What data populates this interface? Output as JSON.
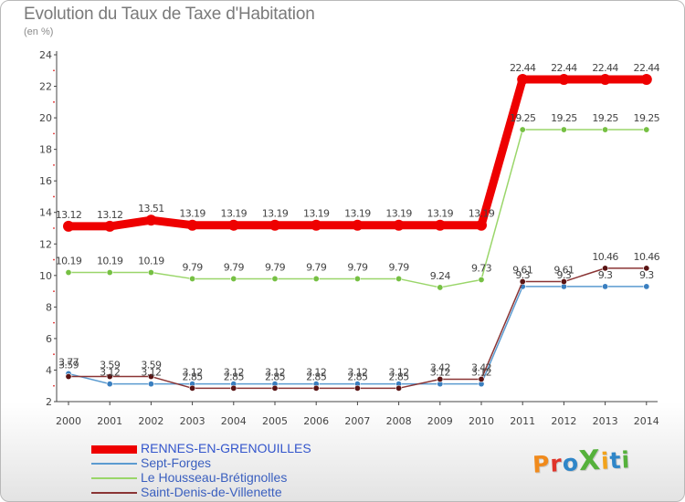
{
  "title": "Evolution du Taux de Taxe d'Habitation",
  "subtitle": "(en %)",
  "logo": "ProXiti",
  "colors": {
    "axis": "#444444",
    "grid_marks": "#dd2222",
    "label": "#444444"
  },
  "chart_data": {
    "type": "line",
    "title": "Evolution du Taux de Taxe d'Habitation",
    "ylabel": "(en %)",
    "xlabel": "",
    "ylim": [
      2,
      24
    ],
    "yticks": [
      2,
      4,
      6,
      8,
      10,
      12,
      14,
      16,
      18,
      20,
      22,
      24
    ],
    "grid": false,
    "legend_position": "bottom-left",
    "x": [
      "2000",
      "2001",
      "2002",
      "2003",
      "2004",
      "2005",
      "2006",
      "2007",
      "2008",
      "2009",
      "2010",
      "2011",
      "2012",
      "2013",
      "2014"
    ],
    "series": [
      {
        "name": "RENNES-EN-GRENOUILLES",
        "color": "#ee0000",
        "marker": "#ee0000",
        "labels": [
          "13.12",
          "13.12",
          "13.51",
          "13.19",
          "13.19",
          "13.19",
          "13.19",
          "13.19",
          "13.19",
          "13.19",
          "13.19",
          "22.44",
          "22.44",
          "22.44",
          "22.44"
        ],
        "values": [
          13.12,
          13.12,
          13.51,
          13.19,
          13.19,
          13.19,
          13.19,
          13.19,
          13.19,
          13.19,
          13.19,
          22.44,
          22.44,
          22.44,
          22.44
        ]
      },
      {
        "name": "Sept-Forges",
        "color": "#5b9bd0",
        "marker": "#3a7fc0",
        "labels": [
          "3.77",
          "3.12",
          "3.12",
          "3.12",
          "3.12",
          "3.12",
          "3.12",
          "3.12",
          "3.12",
          "3.12",
          "3.12",
          "9.3",
          "9.3",
          "9.3",
          "9.3"
        ],
        "values": [
          3.77,
          3.12,
          3.12,
          3.12,
          3.12,
          3.12,
          3.12,
          3.12,
          3.12,
          3.12,
          3.12,
          9.3,
          9.3,
          9.3,
          9.3
        ]
      },
      {
        "name": "Le Housseau-Brétignolles",
        "color": "#9ad66a",
        "marker": "#76c043",
        "labels": [
          "10.19",
          "10.19",
          "10.19",
          "9.79",
          "9.79",
          "9.79",
          "9.79",
          "9.79",
          "9.79",
          "9.24",
          "9.73",
          "19.25",
          "19.25",
          "19.25",
          "19.25"
        ],
        "values": [
          10.19,
          10.19,
          10.19,
          9.79,
          9.79,
          9.79,
          9.79,
          9.79,
          9.79,
          9.24,
          9.73,
          19.25,
          19.25,
          19.25,
          19.25
        ]
      },
      {
        "name": "Saint-Denis-de-Villenette",
        "color": "#8a3434",
        "marker": "#5a1414",
        "labels": [
          "3.59",
          "3.59",
          "3.59",
          "2.85",
          "2.85",
          "2.85",
          "2.85",
          "2.85",
          "2.85",
          "3.42",
          "3.42",
          "9.61",
          "9.61",
          "10.46",
          "10.46"
        ],
        "values": [
          3.59,
          3.59,
          3.59,
          2.85,
          2.85,
          2.85,
          2.85,
          2.85,
          2.85,
          3.42,
          3.42,
          9.61,
          9.61,
          10.46,
          10.46
        ]
      }
    ]
  }
}
